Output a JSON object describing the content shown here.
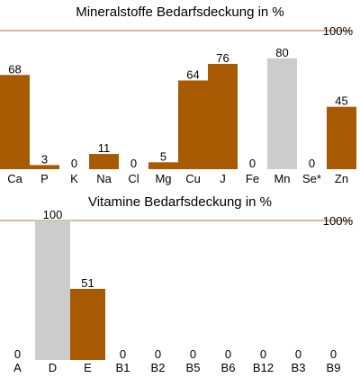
{
  "colors": {
    "primary": "#a85a03",
    "secondary": "#cccccc",
    "reference": "#c9a27a"
  },
  "chart_data": [
    {
      "type": "bar",
      "title": "Mineralstoffe Bedarfsdeckung in %",
      "reference_label": "100%",
      "reference_value": 100,
      "ylim": [
        0,
        100
      ],
      "grid": false,
      "categories": [
        "Ca",
        "P",
        "K",
        "Na",
        "Cl",
        "Mg",
        "Cu",
        "J",
        "Fe",
        "Mn",
        "Se*",
        "Zn"
      ],
      "values": [
        68,
        3,
        0,
        11,
        0,
        5,
        64,
        76,
        0,
        80,
        0,
        45
      ],
      "bar_color_keys": [
        "primary",
        "primary",
        "primary",
        "primary",
        "primary",
        "primary",
        "primary",
        "primary",
        "primary",
        "secondary",
        "primary",
        "primary"
      ]
    },
    {
      "type": "bar",
      "title": "Vitamine Bedarfsdeckung in %",
      "reference_label": "100%",
      "reference_value": 100,
      "ylim": [
        0,
        100
      ],
      "grid": false,
      "categories": [
        "A",
        "D",
        "E",
        "B1",
        "B2",
        "B5",
        "B6",
        "B12",
        "B3",
        "B9"
      ],
      "values": [
        0,
        100,
        51,
        0,
        0,
        0,
        0,
        0,
        0,
        0
      ],
      "bar_color_keys": [
        "primary",
        "secondary",
        "primary",
        "primary",
        "primary",
        "primary",
        "primary",
        "primary",
        "primary",
        "primary"
      ]
    }
  ]
}
